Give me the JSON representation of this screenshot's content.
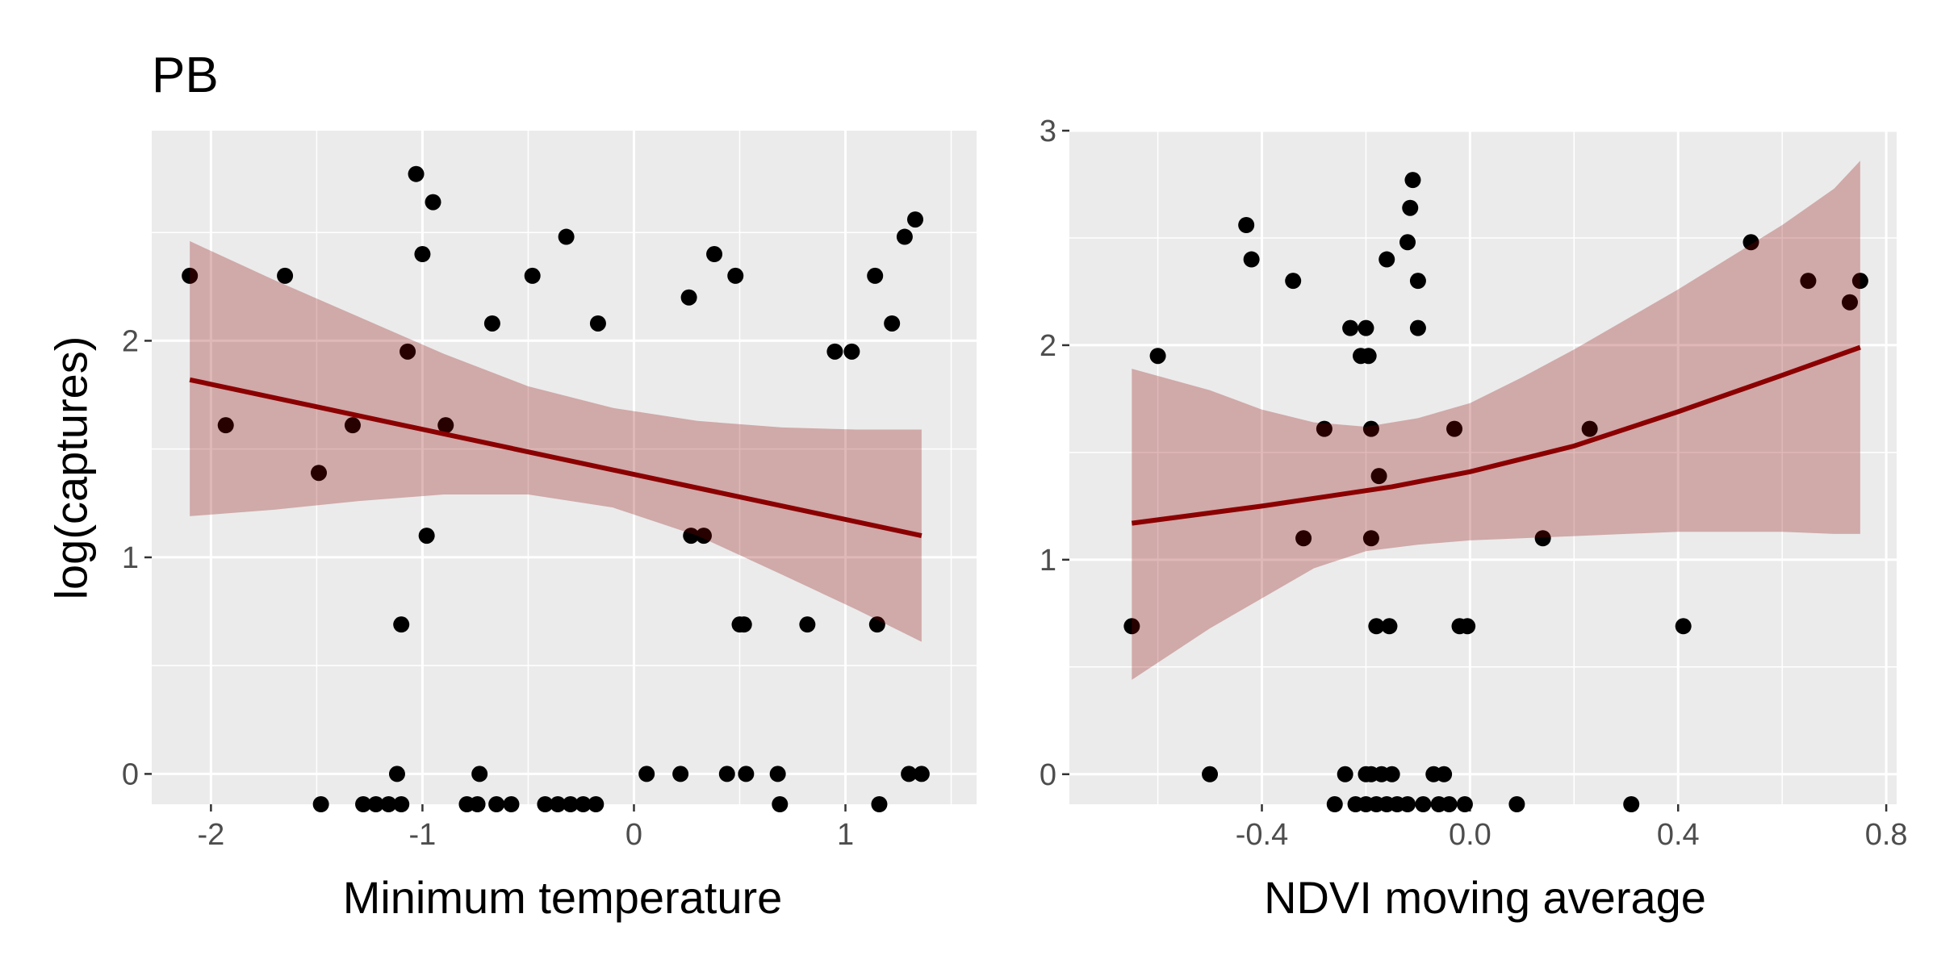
{
  "title": "PB",
  "ylabel": "log(captures)",
  "colors": {
    "panel": "#ebebeb",
    "grid": "#ffffff",
    "point": "#000000",
    "line": "#8b0000",
    "band": "#8b0000"
  },
  "chart_data": [
    {
      "type": "scatter",
      "xlabel": "Minimum temperature",
      "ylabel": "log(captures)",
      "xlim": [
        -2.28,
        1.62
      ],
      "ylim": [
        -0.14,
        2.97
      ],
      "xticks": [
        -2,
        -1,
        0,
        1
      ],
      "xtick_labels": [
        "-2",
        "-1",
        "0",
        "1"
      ],
      "yticks": [
        0,
        1,
        2
      ],
      "ytick_labels": [
        "0",
        "1",
        "2"
      ],
      "grid": true,
      "points": [
        [
          -2.1,
          2.3
        ],
        [
          -1.93,
          1.61
        ],
        [
          -1.65,
          2.3
        ],
        [
          -1.49,
          1.39
        ],
        [
          -1.33,
          1.61
        ],
        [
          -1.07,
          1.95
        ],
        [
          -0.89,
          1.61
        ],
        [
          -1.03,
          2.77
        ],
        [
          -0.95,
          2.64
        ],
        [
          -1.0,
          2.4
        ],
        [
          -0.98,
          1.1
        ],
        [
          -1.1,
          0.69
        ],
        [
          -1.12,
          0.0
        ],
        [
          -0.73,
          0.0
        ],
        [
          -0.67,
          2.08
        ],
        [
          -0.48,
          2.3
        ],
        [
          -0.32,
          2.48
        ],
        [
          -0.17,
          2.08
        ],
        [
          -1.48,
          -0.14
        ],
        [
          -1.28,
          -0.14
        ],
        [
          -1.22,
          -0.14
        ],
        [
          -1.16,
          -0.14
        ],
        [
          -1.1,
          -0.14
        ],
        [
          -0.79,
          -0.14
        ],
        [
          -0.74,
          -0.14
        ],
        [
          -0.65,
          -0.14
        ],
        [
          -0.58,
          -0.14
        ],
        [
          -0.42,
          -0.14
        ],
        [
          -0.36,
          -0.14
        ],
        [
          -0.3,
          -0.14
        ],
        [
          -0.24,
          -0.14
        ],
        [
          -0.18,
          -0.14
        ],
        [
          0.06,
          0.0
        ],
        [
          0.22,
          0.0
        ],
        [
          0.26,
          2.2
        ],
        [
          0.27,
          1.1
        ],
        [
          0.33,
          1.1
        ],
        [
          0.38,
          2.4
        ],
        [
          0.44,
          0.0
        ],
        [
          0.48,
          2.3
        ],
        [
          0.5,
          0.69
        ],
        [
          0.52,
          0.69
        ],
        [
          0.53,
          0.0
        ],
        [
          0.68,
          0.0
        ],
        [
          0.69,
          -0.14
        ],
        [
          0.82,
          0.69
        ],
        [
          0.95,
          1.95
        ],
        [
          1.03,
          1.95
        ],
        [
          1.14,
          2.3
        ],
        [
          1.15,
          0.69
        ],
        [
          1.16,
          -0.14
        ],
        [
          1.22,
          2.08
        ],
        [
          1.28,
          2.48
        ],
        [
          1.3,
          0.0
        ],
        [
          1.33,
          2.56
        ],
        [
          1.36,
          0.0
        ]
      ],
      "fit_line": [
        [
          -2.1,
          1.82
        ],
        [
          1.36,
          1.1
        ]
      ],
      "ci_band": [
        [
          -2.1,
          1.19,
          2.46
        ],
        [
          -1.7,
          1.22,
          2.28
        ],
        [
          -1.3,
          1.26,
          2.11
        ],
        [
          -0.9,
          1.29,
          1.94
        ],
        [
          -0.5,
          1.29,
          1.79
        ],
        [
          -0.1,
          1.23,
          1.69
        ],
        [
          0.3,
          1.1,
          1.63
        ],
        [
          0.7,
          0.92,
          1.6
        ],
        [
          1.05,
          0.76,
          1.59
        ],
        [
          1.36,
          0.61,
          1.59
        ]
      ]
    },
    {
      "type": "scatter",
      "xlabel": "NDVI moving average",
      "ylabel": "",
      "xlim": [
        -0.77,
        0.82
      ],
      "ylim": [
        -0.14,
        3.0
      ],
      "xticks": [
        -0.4,
        0.0,
        0.4,
        0.8
      ],
      "xtick_labels": [
        "-0.4",
        "0.0",
        "0.4",
        "0.8"
      ],
      "yticks": [
        0,
        1,
        2,
        3
      ],
      "ytick_labels": [
        "0",
        "1",
        "2",
        "3"
      ],
      "grid": true,
      "points": [
        [
          -0.65,
          0.69
        ],
        [
          -0.6,
          1.95
        ],
        [
          -0.5,
          0.0
        ],
        [
          -0.43,
          2.56
        ],
        [
          -0.42,
          2.4
        ],
        [
          -0.34,
          2.3
        ],
        [
          -0.32,
          1.1
        ],
        [
          -0.28,
          1.61
        ],
        [
          -0.26,
          -0.14
        ],
        [
          -0.24,
          0.0
        ],
        [
          -0.23,
          2.08
        ],
        [
          -0.21,
          1.95
        ],
        [
          -0.2,
          2.08
        ],
        [
          -0.195,
          1.95
        ],
        [
          -0.19,
          1.61
        ],
        [
          -0.19,
          1.1
        ],
        [
          -0.18,
          0.69
        ],
        [
          -0.175,
          1.39
        ],
        [
          -0.16,
          2.4
        ],
        [
          -0.155,
          0.69
        ],
        [
          -0.2,
          0.0
        ],
        [
          -0.19,
          0.0
        ],
        [
          -0.17,
          0.0
        ],
        [
          -0.15,
          0.0
        ],
        [
          -0.22,
          -0.14
        ],
        [
          -0.2,
          -0.14
        ],
        [
          -0.18,
          -0.14
        ],
        [
          -0.16,
          -0.14
        ],
        [
          -0.14,
          -0.14
        ],
        [
          -0.12,
          -0.14
        ],
        [
          -0.11,
          2.77
        ],
        [
          -0.115,
          2.64
        ],
        [
          -0.12,
          2.48
        ],
        [
          -0.1,
          2.3
        ],
        [
          -0.1,
          2.08
        ],
        [
          -0.07,
          0.0
        ],
        [
          -0.05,
          0.0
        ],
        [
          -0.09,
          -0.14
        ],
        [
          -0.06,
          -0.14
        ],
        [
          -0.04,
          -0.14
        ],
        [
          -0.03,
          1.61
        ],
        [
          -0.02,
          0.69
        ],
        [
          -0.005,
          0.69
        ],
        [
          -0.01,
          -0.14
        ],
        [
          0.09,
          -0.14
        ],
        [
          0.14,
          1.1
        ],
        [
          0.23,
          1.61
        ],
        [
          0.31,
          -0.14
        ],
        [
          0.41,
          0.69
        ],
        [
          0.54,
          2.48
        ],
        [
          0.65,
          2.3
        ],
        [
          0.73,
          2.2
        ],
        [
          0.75,
          2.3
        ]
      ],
      "fit_line": [
        [
          -0.65,
          1.17
        ],
        [
          -0.4,
          1.25
        ],
        [
          -0.15,
          1.34
        ],
        [
          0.0,
          1.41
        ],
        [
          0.2,
          1.53
        ],
        [
          0.4,
          1.69
        ],
        [
          0.6,
          1.86
        ],
        [
          0.75,
          1.99
        ]
      ],
      "ci_band": [
        [
          -0.65,
          0.44,
          1.89
        ],
        [
          -0.5,
          0.68,
          1.79
        ],
        [
          -0.4,
          0.82,
          1.7
        ],
        [
          -0.3,
          0.96,
          1.64
        ],
        [
          -0.2,
          1.04,
          1.62
        ],
        [
          -0.1,
          1.07,
          1.66
        ],
        [
          0.0,
          1.09,
          1.73
        ],
        [
          0.1,
          1.1,
          1.85
        ],
        [
          0.2,
          1.11,
          1.98
        ],
        [
          0.3,
          1.12,
          2.12
        ],
        [
          0.4,
          1.13,
          2.26
        ],
        [
          0.5,
          1.13,
          2.41
        ],
        [
          0.6,
          1.13,
          2.56
        ],
        [
          0.7,
          1.12,
          2.73
        ],
        [
          0.75,
          1.12,
          2.86
        ]
      ]
    }
  ]
}
